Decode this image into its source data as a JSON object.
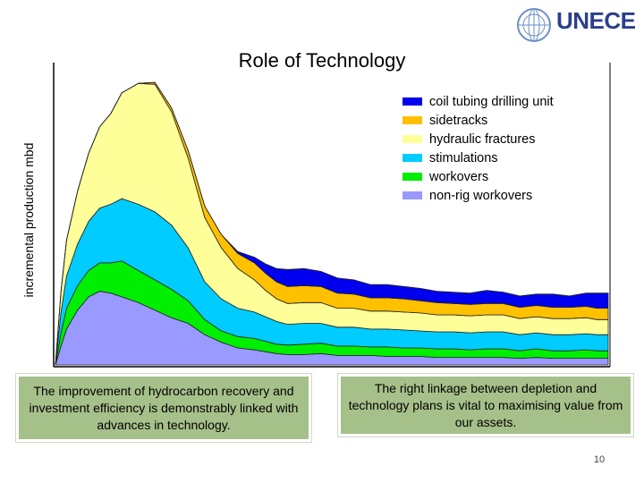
{
  "header": {
    "logo_name": "UNECE"
  },
  "chart_data": {
    "type": "area",
    "stacked": true,
    "title": "Role of Technology",
    "xlabel": "",
    "ylabel": "incremental production mbd",
    "grid": false,
    "legend_position": "top-right",
    "x": [
      0,
      0.01,
      0.02,
      0.04,
      0.06,
      0.08,
      0.1,
      0.12,
      0.15,
      0.18,
      0.21,
      0.24,
      0.27,
      0.3,
      0.33,
      0.36,
      0.38,
      0.4,
      0.42,
      0.45,
      0.48,
      0.51,
      0.54,
      0.57,
      0.6,
      0.63,
      0.66,
      0.69,
      0.72,
      0.75,
      0.78,
      0.81,
      0.84,
      0.87,
      0.9,
      0.93,
      0.96,
      0.98,
      1.0
    ],
    "ylim": [
      0,
      320
    ],
    "series": [
      {
        "name": "non-rig workovers",
        "color": "#9999ff",
        "values": [
          0,
          20,
          38,
          58,
          72,
          78,
          76,
          72,
          66,
          58,
          50,
          44,
          32,
          24,
          18,
          16,
          14,
          12,
          11,
          11,
          12,
          10,
          10,
          10,
          9,
          9,
          9,
          8,
          8,
          8,
          8,
          8,
          7,
          8,
          7,
          7,
          7,
          7,
          7
        ]
      },
      {
        "name": "workovers",
        "color": "#00ee00",
        "values": [
          0,
          14,
          22,
          26,
          28,
          30,
          32,
          38,
          34,
          32,
          30,
          24,
          16,
          12,
          12,
          12,
          11,
          10,
          10,
          11,
          11,
          10,
          10,
          9,
          10,
          9,
          9,
          9,
          9,
          8,
          9,
          9,
          8,
          9,
          8,
          8,
          9,
          8,
          8
        ]
      },
      {
        "name": "stimulations",
        "color": "#00ccff",
        "values": [
          0,
          22,
          34,
          44,
          52,
          58,
          62,
          66,
          70,
          72,
          68,
          56,
          40,
          34,
          30,
          28,
          26,
          24,
          22,
          22,
          21,
          20,
          20,
          19,
          19,
          19,
          18,
          18,
          18,
          18,
          18,
          18,
          17,
          17,
          17,
          17,
          17,
          17,
          17
        ]
      },
      {
        "name": "hydraulic fractures",
        "color": "#ffff99",
        "values": [
          0,
          22,
          38,
          56,
          72,
          86,
          96,
          112,
          128,
          135,
          120,
          95,
          68,
          54,
          42,
          34,
          28,
          24,
          22,
          22,
          22,
          20,
          20,
          19,
          19,
          19,
          19,
          18,
          18,
          18,
          18,
          18,
          17,
          17,
          17,
          17,
          17,
          16,
          16
        ]
      },
      {
        "name": "sidetracks",
        "color": "#ffc000",
        "values": [
          0,
          0,
          0,
          0,
          0,
          0,
          0,
          0,
          0,
          2,
          4,
          8,
          12,
          14,
          16,
          18,
          18,
          18,
          18,
          18,
          17,
          16,
          15,
          14,
          14,
          14,
          13,
          13,
          12,
          12,
          12,
          12,
          12,
          12,
          12,
          12,
          12,
          12,
          12
        ]
      },
      {
        "name": "coil tubing drilling unit",
        "color": "#0000ee",
        "values": [
          0,
          0,
          0,
          0,
          0,
          0,
          0,
          0,
          0,
          0,
          0,
          0,
          0,
          0,
          2,
          6,
          10,
          14,
          18,
          18,
          16,
          16,
          15,
          14,
          14,
          13,
          13,
          12,
          12,
          12,
          14,
          12,
          12,
          12,
          14,
          12,
          14,
          16,
          16
        ]
      }
    ]
  },
  "callouts": {
    "left": "The improvement of hydrocarbon recovery and investment efficiency is demonstrably linked with advances in technology.",
    "right": "The right linkage between depletion and technology plans is vital to maximising value from our assets."
  },
  "page_number": "10"
}
